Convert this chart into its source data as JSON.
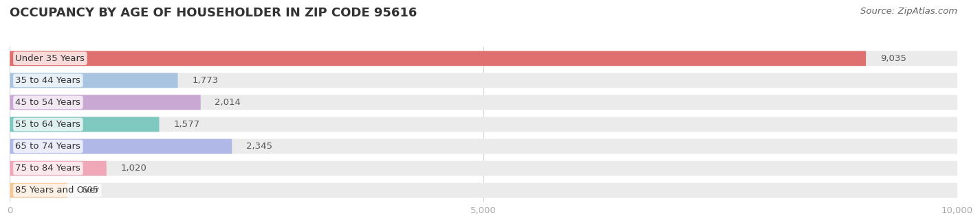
{
  "title": "OCCUPANCY BY AGE OF HOUSEHOLDER IN ZIP CODE 95616",
  "source": "Source: ZipAtlas.com",
  "categories": [
    "Under 35 Years",
    "35 to 44 Years",
    "45 to 54 Years",
    "55 to 64 Years",
    "65 to 74 Years",
    "75 to 84 Years",
    "85 Years and Over"
  ],
  "values": [
    9035,
    1773,
    2014,
    1577,
    2345,
    1020,
    605
  ],
  "bar_colors": [
    "#e07070",
    "#a8c4e0",
    "#c9a8d4",
    "#7ec8c0",
    "#b0b8e8",
    "#f0a8b8",
    "#f5c898"
  ],
  "bar_bg_color": "#ebebeb",
  "background_color": "#ffffff",
  "xlim": [
    0,
    10000
  ],
  "xticks": [
    0,
    5000,
    10000
  ],
  "title_fontsize": 13,
  "label_fontsize": 9.5,
  "value_fontsize": 9.5,
  "source_fontsize": 9.5,
  "bar_height": 0.68,
  "title_color": "#333333",
  "label_color": "#333333",
  "value_color": "#555555",
  "source_color": "#666666"
}
